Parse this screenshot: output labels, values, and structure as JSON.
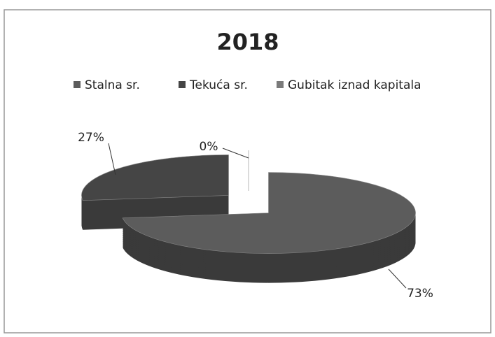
{
  "chart_data": {
    "type": "pie",
    "title": "2018",
    "categories": [
      "Stalna sr.",
      "Tekuća sr.",
      "Gubitak iznad kapitala"
    ],
    "values": [
      73,
      27,
      0
    ],
    "value_labels": [
      "73%",
      "27%",
      "0%"
    ],
    "colors": [
      "#5c5c5c",
      "#454545",
      "#7a7a7a"
    ],
    "legend": "top"
  }
}
